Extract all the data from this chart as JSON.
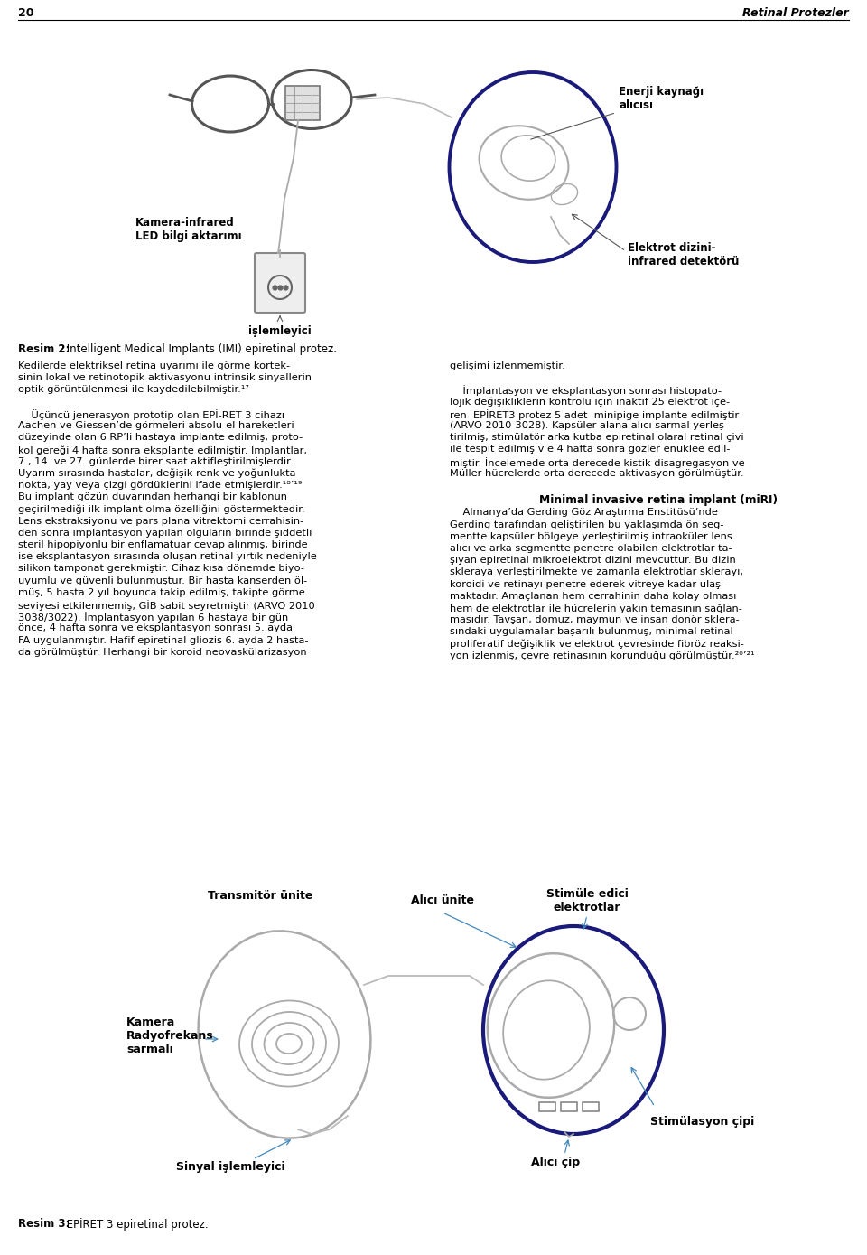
{
  "page_number": "20",
  "header_right": "Retinal Protezler",
  "bg_color": "#ffffff",
  "text_color": "#000000",
  "fig1_caption_bold": "Resim 2:",
  "fig1_caption_normal": " Intelligent Medical Implants (IMI) epiretinal protez.",
  "fig2_caption_bold": "Resim 3:",
  "fig2_caption_normal": " EPİRET 3 epiretinal protez.",
  "col1_lines": [
    "Kedilerde elektriksel retina uyarımı ile görme kortek-",
    "sinin lokal ve retinotopik aktivasyonu intrinsik sinyallerin",
    "optik görüntülenmesi ile kaydedilebilmiştir.¹⁷",
    "",
    "    Üçüncü jenerasyon prototip olan EPİ-RET 3 cihazı",
    "Aachen ve Giessen’de görmeleri absolu-el hareketleri",
    "düzeyinde olan 6 RP’li hastaya implante edilmiş, proto-",
    "kol gereği 4 hafta sonra eksplante edilmiştir. İmplantlar,",
    "7., 14. ve 27. günlerde birer saat aktifleştirilmişlerdir.",
    "Uyarım sırasında hastalar, değişik renk ve yoğunlukta",
    "nokta, yay veya çizgi gördüklerini ifade etmişlerdir.¹⁸’¹⁹",
    "Bu implant gözün duvarından herhangi bir kablonun",
    "geçirilmediği ilk implant olma özelliğini göstermektedir.",
    "Lens ekstraksiyonu ve pars plana vitrektomi cerrahisin-",
    "den sonra implantasyon yapılan olguların birinde şiddetli",
    "steril hipopiyonlu bir enflamatuar cevap alınmış, birinde",
    "ise eksplantasyon sırasında oluşan retinal yırtık nedeniyle",
    "silikon tamponat gerekmiştir. Cihaz kısa dönemde biyo-",
    "uyumlu ve güvenli bulunmuştur. Bir hasta kanserden öl-",
    "müş, 5 hasta 2 yıl boyunca takip edilmiş, takipte görme",
    "seviyesi etkilenmemiş, GİB sabit seyretmiştir (ARVO 2010",
    "3038/3022). İmplantasyon yapılan 6 hastaya bir gün",
    "önce, 4 hafta sonra ve eksplantasyon sonrası 5. ayda",
    "FA uygulanmıştır. Hafif epiretinal gliozis 6. ayda 2 hasta-",
    "da görülmüştür. Herhangi bir koroid neovaskülarizasyon"
  ],
  "col2_lines_top": [
    "gelişimi izlenmemiştir.",
    "",
    "    İmplantasyon ve eksplantasyon sonrası histopato-",
    "lojik değişikliklerin kontrolü için inaktif 25 elektrot içe-",
    "ren  EPİRET3 protez 5 adet  minipige implante edilmiştir",
    "(ARVO 2010-3028). Kapsüler alana alıcı sarmal yerleş-",
    "tirilmiş, stimülatör arka kutba epiretinal olaral retinal çivi",
    "ile tespit edilmiş v e 4 hafta sonra gözler enüklee edil-",
    "miştir. İncelemede orta derecede kistik disagregasyon ve",
    "Müller hücrelerde orta derecede aktivasyon görülmüştür.",
    ""
  ],
  "miri_title": "Minimal invasive retina implant (miRI)",
  "col2_miri_lines": [
    "    Almanya’da Gerding Göz Araştırma Enstitüsü’nde",
    "Gerding tarafından geliştirilen bu yaklaşımda ön seg-",
    "mentte kapsüler bölgeye yerleştirilmiş intraoküler lens",
    "alıcı ve arka segmentte penetre olabilen elektrotlar ta-",
    "şıyan epiretinal mikroelektrot dizini mevcuttur. Bu dizin",
    "skleraya yerleştirilmekte ve zamanla elektrotlar sklerayı,",
    "koroidi ve retinayı penetre ederek vitreye kadar ulaş-",
    "maktadır. Amaçlanan hem cerrahinin daha kolay olması",
    "hem de elektrotlar ile hücrelerin yakın temasının sağlan-",
    "masıdır. Tavşan, domuz, maymun ve insan donör sklera-",
    "sındaki uygulamalar başarılı bulunmuş, minimal retinal",
    "proliferatif değişiklik ve elektrot çevresinde fibröz reaksi-",
    "yon izlenmiş, çevre retinasının korunduğu görülmüştür.²⁰’²¹"
  ],
  "fig1_label_enerji": "Enerji kaynağı\nalıcısı",
  "fig1_label_kamera": "Kamera-infrared\nLED bilgi aktarımı",
  "fig1_label_islemleyici": "işlemleyici",
  "fig1_label_elektrot": "Elektrot dizini-\ninfrared detektörü",
  "fig2_label_transmitor": "Transmitör ünite",
  "fig2_label_alici_unite": "Alıcı ünite",
  "fig2_label_stimule": "Stimüle edici\nelektrotlar",
  "fig2_label_kamera": "Kamera\nRadyofrekans\nsarmalı",
  "fig2_label_sinyal": "Sinyal işlemleyici",
  "fig2_label_alici_cip": "Alıcı çip",
  "fig2_label_stimulasyon": "Stimülasyon çipi"
}
